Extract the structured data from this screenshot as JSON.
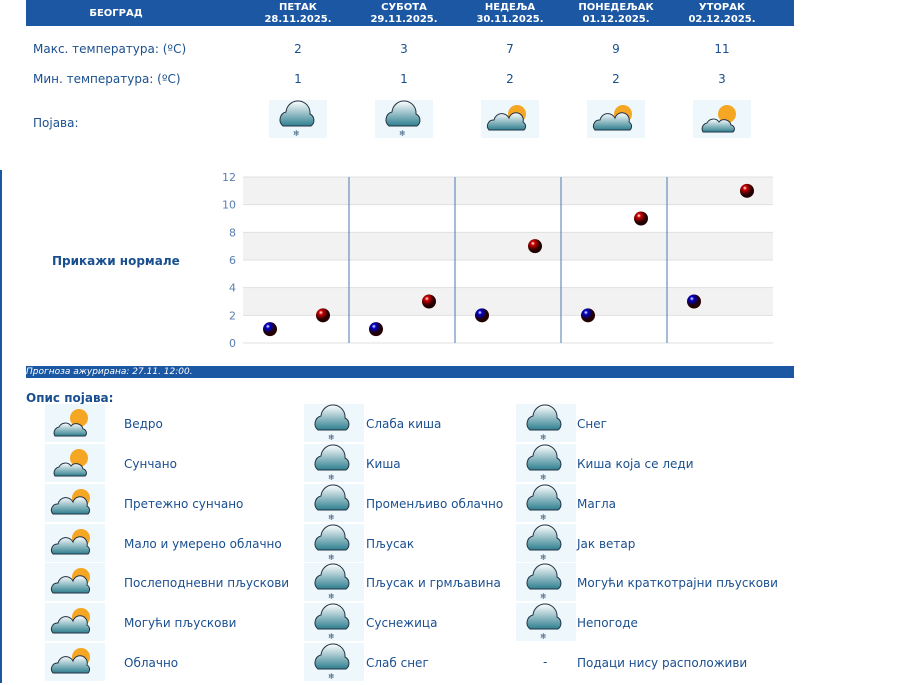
{
  "header": {
    "city": "БЕОГРАД",
    "days": [
      {
        "day": "ПЕТАК",
        "date": "28.11.2025."
      },
      {
        "day": "СУБОТА",
        "date": "29.11.2025."
      },
      {
        "day": "НЕДЕЉА",
        "date": "30.11.2025."
      },
      {
        "day": "ПОНЕДЕЉАК",
        "date": "01.12.2025."
      },
      {
        "day": "УТОРАК",
        "date": "02.12.2025."
      }
    ]
  },
  "rows": {
    "max_label": "Макс. температура: (ºC)",
    "min_label": "Мин. температура: (ºC)",
    "phen_label": "Појава:",
    "max": [
      "2",
      "3",
      "7",
      "9",
      "11"
    ],
    "min": [
      "1",
      "1",
      "2",
      "2",
      "3"
    ],
    "icons": [
      "snow-cloud-icon",
      "snow-cloud-icon",
      "partly-cloudy-icon",
      "partly-cloudy-icon",
      "mostly-sunny-icon"
    ]
  },
  "show_normals": "Прикажи нормале",
  "chart_data": {
    "type": "scatter",
    "categories": [
      "28.11.2025.",
      "29.11.2025.",
      "30.11.2025.",
      "01.12.2025.",
      "02.12.2025."
    ],
    "series": [
      {
        "name": "min",
        "color": "#0000cc",
        "values": [
          1,
          1,
          2,
          2,
          3
        ]
      },
      {
        "name": "max",
        "color": "#cc0000",
        "values": [
          2,
          3,
          7,
          9,
          11
        ]
      }
    ],
    "ylim": [
      0,
      12
    ],
    "yticks": [
      "0",
      "2",
      "4",
      "6",
      "8",
      "10",
      "12"
    ],
    "grid": true
  },
  "updated": "Прогноза ажурирана:  27.11. 12:00.",
  "legend_title": "Опис појава:",
  "legend": [
    [
      "Ведро",
      "Слаба киша",
      "Снег"
    ],
    [
      "Сунчано",
      "Киша",
      "Киша која се леди"
    ],
    [
      "Претежно сунчано",
      "Променљиво облачно",
      "Магла"
    ],
    [
      "Мало и умерено облачно",
      "Пљусак",
      "Јак ветар"
    ],
    [
      "Послеподневни пљускови",
      "Пљусак и грмљавина",
      "Могући краткотрајни пљускови"
    ],
    [
      "Могући пљускови",
      "Суснежица",
      "Непогоде"
    ],
    [
      "Облачно",
      "Слаб снег",
      "Подаци нису расположиви"
    ]
  ],
  "no_data_symbol": "-"
}
